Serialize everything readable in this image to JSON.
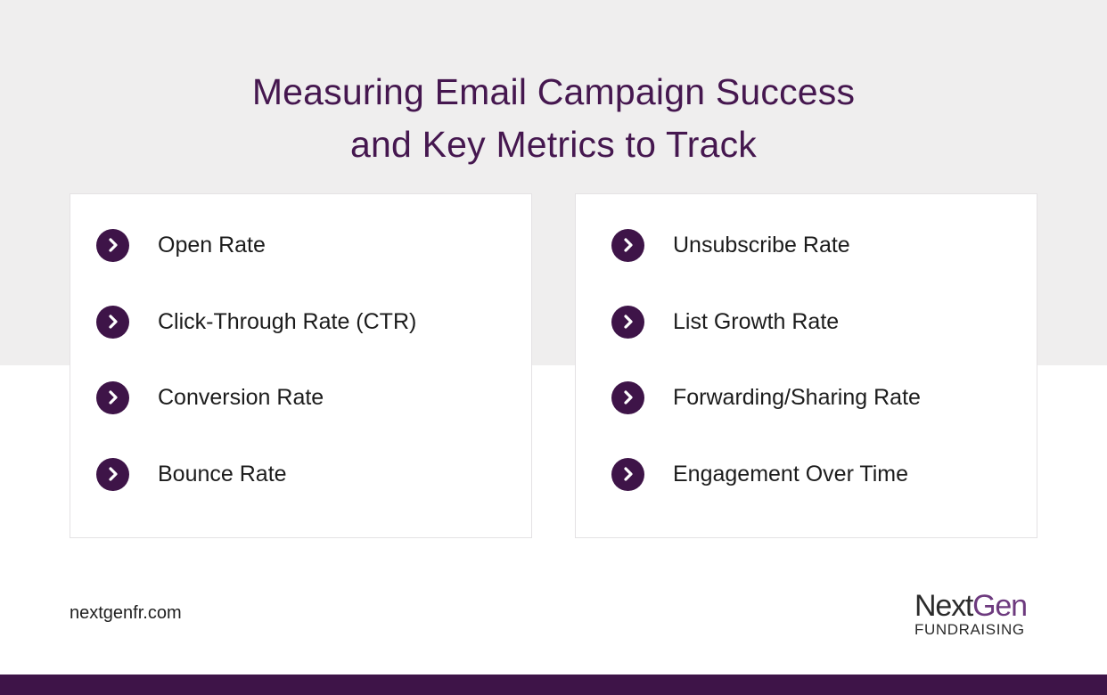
{
  "title": {
    "line1": "Measuring Email Campaign Success",
    "line2": "and Key Metrics to Track"
  },
  "left_card": {
    "items": [
      {
        "label": "Open Rate"
      },
      {
        "label": "Click-Through Rate (CTR)"
      },
      {
        "label": "Conversion Rate"
      },
      {
        "label": "Bounce Rate"
      }
    ]
  },
  "right_card": {
    "items": [
      {
        "label": "Unsubscribe Rate"
      },
      {
        "label": "List Growth Rate"
      },
      {
        "label": "Forwarding/Sharing Rate"
      },
      {
        "label": "Engagement Over Time"
      }
    ]
  },
  "footer": {
    "url": "nextgenfr.com",
    "logo_next": "Next",
    "logo_gen": "Gen",
    "logo_sub": "FUNDRAISING"
  },
  "colors": {
    "accent": "#3e1448",
    "title": "#45174f",
    "band": "#efeeee"
  },
  "icons": {
    "bullet": "chevron-right-circle-icon"
  }
}
